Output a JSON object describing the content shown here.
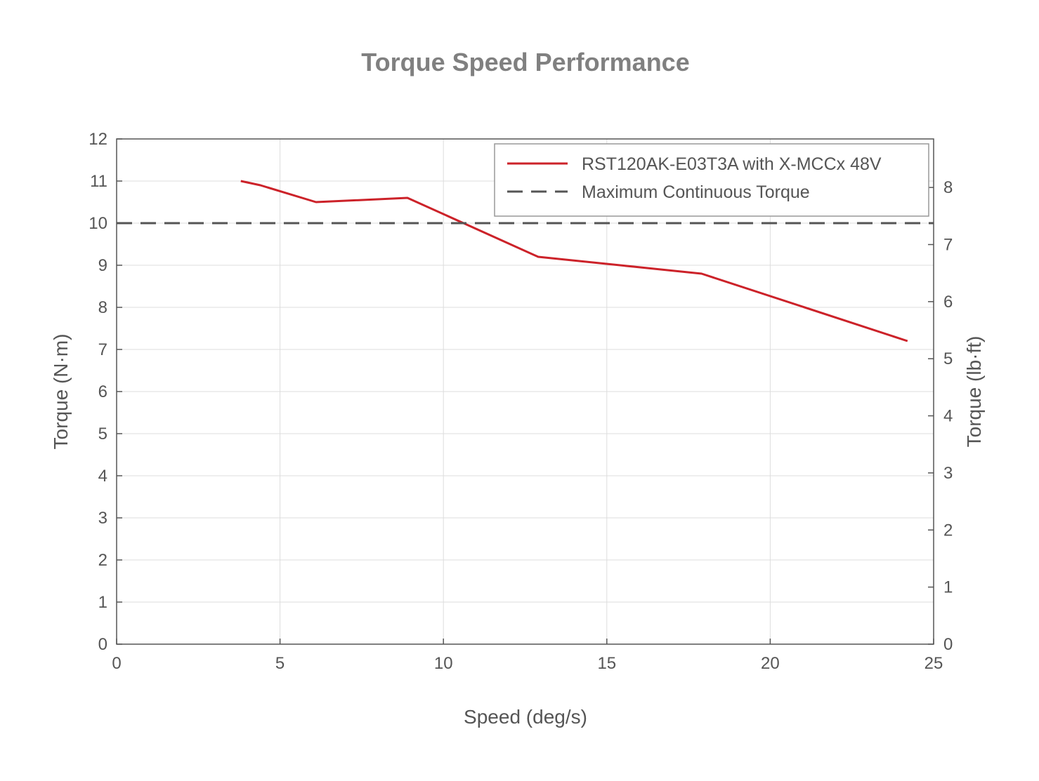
{
  "chart_data": {
    "type": "line",
    "title": "Torque Speed Performance",
    "xlabel": "Speed (deg/s)",
    "ylabel": "Torque (N·m)",
    "y2label": "Torque (lb·ft)",
    "xlim": [
      0,
      25
    ],
    "ylim": [
      0,
      12
    ],
    "y2lim": [
      0,
      8.85
    ],
    "x_ticks": [
      "0",
      "5",
      "10",
      "15",
      "20",
      "25"
    ],
    "y_ticks": [
      "0",
      "1",
      "2",
      "3",
      "4",
      "5",
      "6",
      "7",
      "8",
      "9",
      "10",
      "11",
      "12"
    ],
    "y2_ticks": [
      "0",
      "1",
      "2",
      "3",
      "4",
      "5",
      "6",
      "7",
      "8"
    ],
    "grid": true,
    "legend_position": "top-right",
    "series": [
      {
        "name": "RST120AK-E03T3A with X-MCCx 48V",
        "color": "#cc2229",
        "style": "solid",
        "x": [
          3.8,
          4.4,
          6.1,
          8.9,
          12.9,
          17.9,
          24.2
        ],
        "y": [
          11.0,
          10.9,
          10.5,
          10.6,
          9.2,
          8.8,
          7.2
        ]
      },
      {
        "name": "Maximum Continuous Torque",
        "color": "#555555",
        "style": "dashed",
        "x": [
          0,
          25
        ],
        "y": [
          10,
          10
        ]
      }
    ]
  }
}
